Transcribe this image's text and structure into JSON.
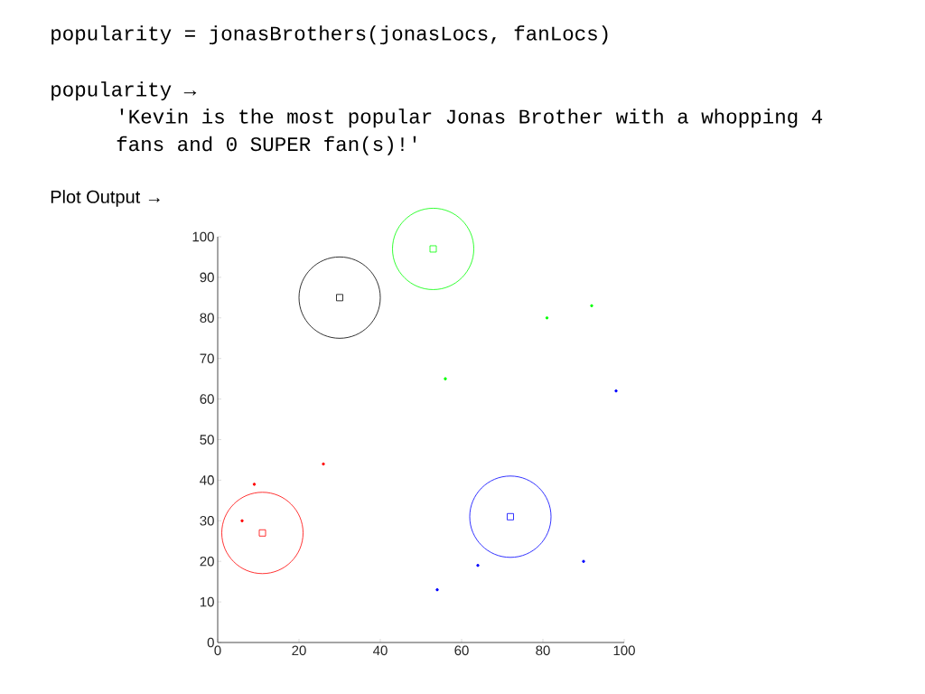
{
  "chart_data": {
    "type": "scatter",
    "annotations": [
      "popularity = jonasBrothers(jonasLocs, fanLocs)",
      "popularity →",
      "'Kevin is the most popular Jonas Brother with a whopping 4 fans and 0 SUPER fan(s)!'",
      "Plot Output →"
    ],
    "xlim": [
      0,
      100
    ],
    "ylim": [
      0,
      100
    ],
    "xticks": [
      0,
      20,
      40,
      60,
      80,
      100
    ],
    "yticks": [
      0,
      10,
      20,
      30,
      40,
      50,
      60,
      70,
      80,
      90,
      100
    ],
    "grid": false,
    "series": [
      {
        "type": "scatter",
        "marker": "square",
        "x": [
          30,
          53,
          11,
          72
        ],
        "values": [
          85,
          97,
          27,
          31
        ],
        "colors": [
          "#000000",
          "#00ff00",
          "#ff0000",
          "#0000ff"
        ]
      },
      {
        "type": "bubble",
        "x": [
          30,
          53,
          11,
          72
        ],
        "values": [
          85,
          97,
          27,
          31
        ],
        "sizes": [
          1,
          1,
          1,
          1
        ],
        "colors": [
          "#000000",
          "#00ff00",
          "#ff0000",
          "#0000ff"
        ]
      },
      {
        "type": "scatter",
        "marker": "circle",
        "x": [
          6,
          9,
          26,
          56,
          81,
          92,
          98,
          90,
          64,
          54
        ],
        "values": [
          30,
          39,
          44,
          65,
          80,
          83,
          62,
          20,
          19,
          13
        ],
        "colors": [
          "#ff0000",
          "#ff0000",
          "#ff0000",
          "#00ff00",
          "#00ff00",
          "#00ff00",
          "#0000ff",
          "#0000ff",
          "#0000ff",
          "#0000ff"
        ]
      }
    ]
  }
}
